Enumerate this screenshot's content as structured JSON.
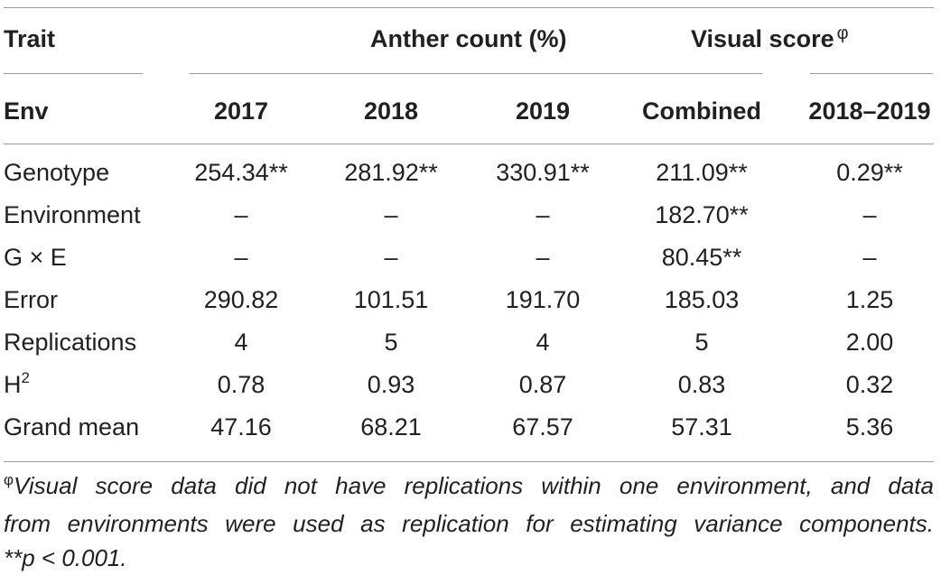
{
  "table": {
    "header": {
      "trait_label": "Trait",
      "group_anther": "Anther count (%)",
      "group_visual": "Visual score",
      "group_visual_marker": "φ",
      "env_label": "Env",
      "columns": [
        "2017",
        "2018",
        "2019",
        "Combined",
        "2018–2019"
      ]
    },
    "rows": [
      {
        "label": "Genotype",
        "cells": [
          "254.34**",
          "281.92**",
          "330.91**",
          "211.09**",
          "0.29**"
        ]
      },
      {
        "label": "Environment",
        "cells": [
          "–",
          "–",
          "–",
          "182.70**",
          "–"
        ]
      },
      {
        "label": "G × E",
        "cells": [
          "–",
          "–",
          "–",
          "80.45**",
          "–"
        ]
      },
      {
        "label": "Error",
        "cells": [
          "290.82",
          "101.51",
          "191.70",
          "185.03",
          "1.25"
        ]
      },
      {
        "label": "Replications",
        "cells": [
          "4",
          "5",
          "4",
          "5",
          "2.00"
        ]
      },
      {
        "label_base": "H",
        "label_sup": "2",
        "cells": [
          "0.78",
          "0.93",
          "0.87",
          "0.83",
          "0.32"
        ]
      },
      {
        "label": "Grand mean",
        "cells": [
          "47.16",
          "68.21",
          "67.57",
          "57.31",
          "5.36"
        ]
      }
    ]
  },
  "footnote": {
    "marker": "φ",
    "line1": "Visual score data did not have replications within one environment, and data",
    "line2": "from environments were used as replication for estimating variance components.",
    "line3": "**p < 0.001."
  }
}
